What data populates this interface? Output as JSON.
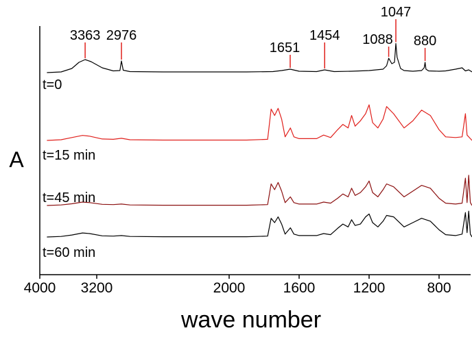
{
  "chart_data": {
    "type": "line",
    "xlabel": "wave number",
    "ylabel": "A",
    "xlim": [
      4000,
      600
    ],
    "x_ticks": [
      4000,
      3200,
      2000,
      1600,
      1200,
      800
    ],
    "x_tick_labels": [
      "4000",
      "3200",
      "2000",
      "1600",
      "1200",
      "800"
    ],
    "y_ticks_shown": false,
    "grid": false,
    "series": [
      {
        "name": "t=0",
        "color": "#000000",
        "x": [
          3900,
          3700,
          3550,
          3450,
          3363,
          3280,
          3150,
          3050,
          2990,
          2976,
          2960,
          2900,
          2600,
          2200,
          1900,
          1750,
          1700,
          1651,
          1600,
          1500,
          1454,
          1400,
          1300,
          1200,
          1120,
          1100,
          1088,
          1070,
          1055,
          1047,
          1040,
          1020,
          1000,
          950,
          900,
          885,
          880,
          875,
          860,
          800,
          760,
          700,
          660,
          640,
          620,
          600
        ],
        "values": [
          0,
          0.02,
          0.12,
          0.3,
          0.38,
          0.32,
          0.14,
          0.05,
          0.06,
          0.34,
          0.07,
          0.03,
          0.02,
          0.02,
          0.02,
          0.03,
          0.06,
          0.1,
          0.04,
          0.03,
          0.08,
          0.03,
          0.04,
          0.06,
          0.1,
          0.2,
          0.42,
          0.26,
          0.3,
          0.85,
          0.45,
          0.12,
          0.06,
          0.04,
          0.06,
          0.14,
          0.3,
          0.1,
          0.05,
          0.04,
          0.05,
          0.1,
          0.14,
          0.05,
          0.08,
          0.02
        ]
      },
      {
        "name": "t=15 min",
        "color": "#e0201c",
        "x": [
          3900,
          3700,
          3550,
          3400,
          3300,
          3150,
          3050,
          2976,
          2900,
          2600,
          2200,
          1900,
          1780,
          1760,
          1740,
          1720,
          1700,
          1680,
          1650,
          1630,
          1600,
          1500,
          1460,
          1420,
          1380,
          1350,
          1320,
          1300,
          1280,
          1250,
          1220,
          1200,
          1180,
          1150,
          1120,
          1100,
          1060,
          1000,
          950,
          900,
          850,
          800,
          760,
          700,
          660,
          640,
          630,
          610,
          600
        ],
        "values": [
          0,
          0.02,
          0.08,
          0.14,
          0.12,
          0.04,
          0.03,
          0.06,
          0.02,
          0.01,
          0.01,
          0.01,
          0.03,
          0.88,
          0.7,
          0.9,
          0.6,
          0.1,
          0.35,
          0.1,
          0.05,
          0.05,
          0.15,
          0.08,
          0.3,
          0.45,
          0.35,
          0.7,
          0.4,
          0.55,
          0.75,
          1.0,
          0.5,
          0.35,
          0.6,
          0.95,
          0.75,
          0.35,
          0.55,
          0.85,
          0.7,
          0.3,
          0.1,
          0.08,
          0.1,
          0.75,
          0.15,
          0.05,
          0.0
        ]
      },
      {
        "name": "t=45 min",
        "color": "#8b1010",
        "x": [
          3900,
          3700,
          3550,
          3400,
          3300,
          3150,
          3050,
          2976,
          2900,
          2600,
          2200,
          1900,
          1780,
          1760,
          1740,
          1720,
          1700,
          1680,
          1650,
          1630,
          1600,
          1500,
          1460,
          1420,
          1380,
          1350,
          1320,
          1300,
          1280,
          1250,
          1220,
          1200,
          1180,
          1150,
          1120,
          1100,
          1060,
          1000,
          950,
          900,
          850,
          800,
          760,
          700,
          660,
          640,
          630,
          620,
          610,
          600
        ],
        "values": [
          0,
          0.02,
          0.06,
          0.12,
          0.1,
          0.04,
          0.03,
          0.05,
          0.02,
          0.01,
          0.01,
          0.01,
          0.03,
          0.75,
          0.55,
          0.8,
          0.5,
          0.1,
          0.3,
          0.1,
          0.05,
          0.05,
          0.12,
          0.08,
          0.25,
          0.4,
          0.3,
          0.6,
          0.35,
          0.45,
          0.65,
          0.85,
          0.45,
          0.3,
          0.55,
          0.75,
          0.65,
          0.3,
          0.5,
          0.7,
          0.6,
          0.25,
          0.08,
          0.05,
          0.08,
          0.95,
          0.1,
          1.05,
          0.1,
          0.0
        ]
      },
      {
        "name": "t=60 min",
        "color": "#000000",
        "x": [
          3900,
          3700,
          3550,
          3400,
          3300,
          3150,
          3050,
          2976,
          2900,
          2600,
          2200,
          1900,
          1780,
          1760,
          1740,
          1720,
          1700,
          1680,
          1650,
          1630,
          1600,
          1500,
          1460,
          1420,
          1380,
          1350,
          1320,
          1300,
          1280,
          1250,
          1220,
          1200,
          1180,
          1150,
          1120,
          1100,
          1060,
          1000,
          950,
          900,
          850,
          800,
          760,
          700,
          660,
          640,
          630,
          620,
          610,
          600
        ],
        "values": [
          0,
          0.02,
          0.07,
          0.14,
          0.12,
          0.04,
          0.03,
          0.05,
          0.02,
          0.01,
          0.01,
          0.01,
          0.03,
          0.65,
          0.5,
          0.7,
          0.45,
          0.1,
          0.32,
          0.1,
          0.05,
          0.05,
          0.12,
          0.08,
          0.3,
          0.45,
          0.35,
          0.6,
          0.4,
          0.45,
          0.7,
          0.8,
          0.5,
          0.35,
          0.55,
          0.75,
          0.7,
          0.35,
          0.5,
          0.65,
          0.55,
          0.25,
          0.08,
          0.05,
          0.1,
          0.85,
          0.15,
          0.9,
          0.1,
          0.0
        ]
      }
    ],
    "annotations": [
      {
        "label": "3363",
        "series": "t=0",
        "x": 3363
      },
      {
        "label": "2976",
        "series": "t=0",
        "x": 2976
      },
      {
        "label": "1651",
        "series": "t=0",
        "x": 1651
      },
      {
        "label": "1454",
        "series": "t=0",
        "x": 1454
      },
      {
        "label": "1088",
        "series": "t=0",
        "x": 1088
      },
      {
        "label": "1047",
        "series": "t=0",
        "x": 1047
      },
      {
        "label": "880",
        "series": "t=0",
        "x": 880
      }
    ]
  }
}
